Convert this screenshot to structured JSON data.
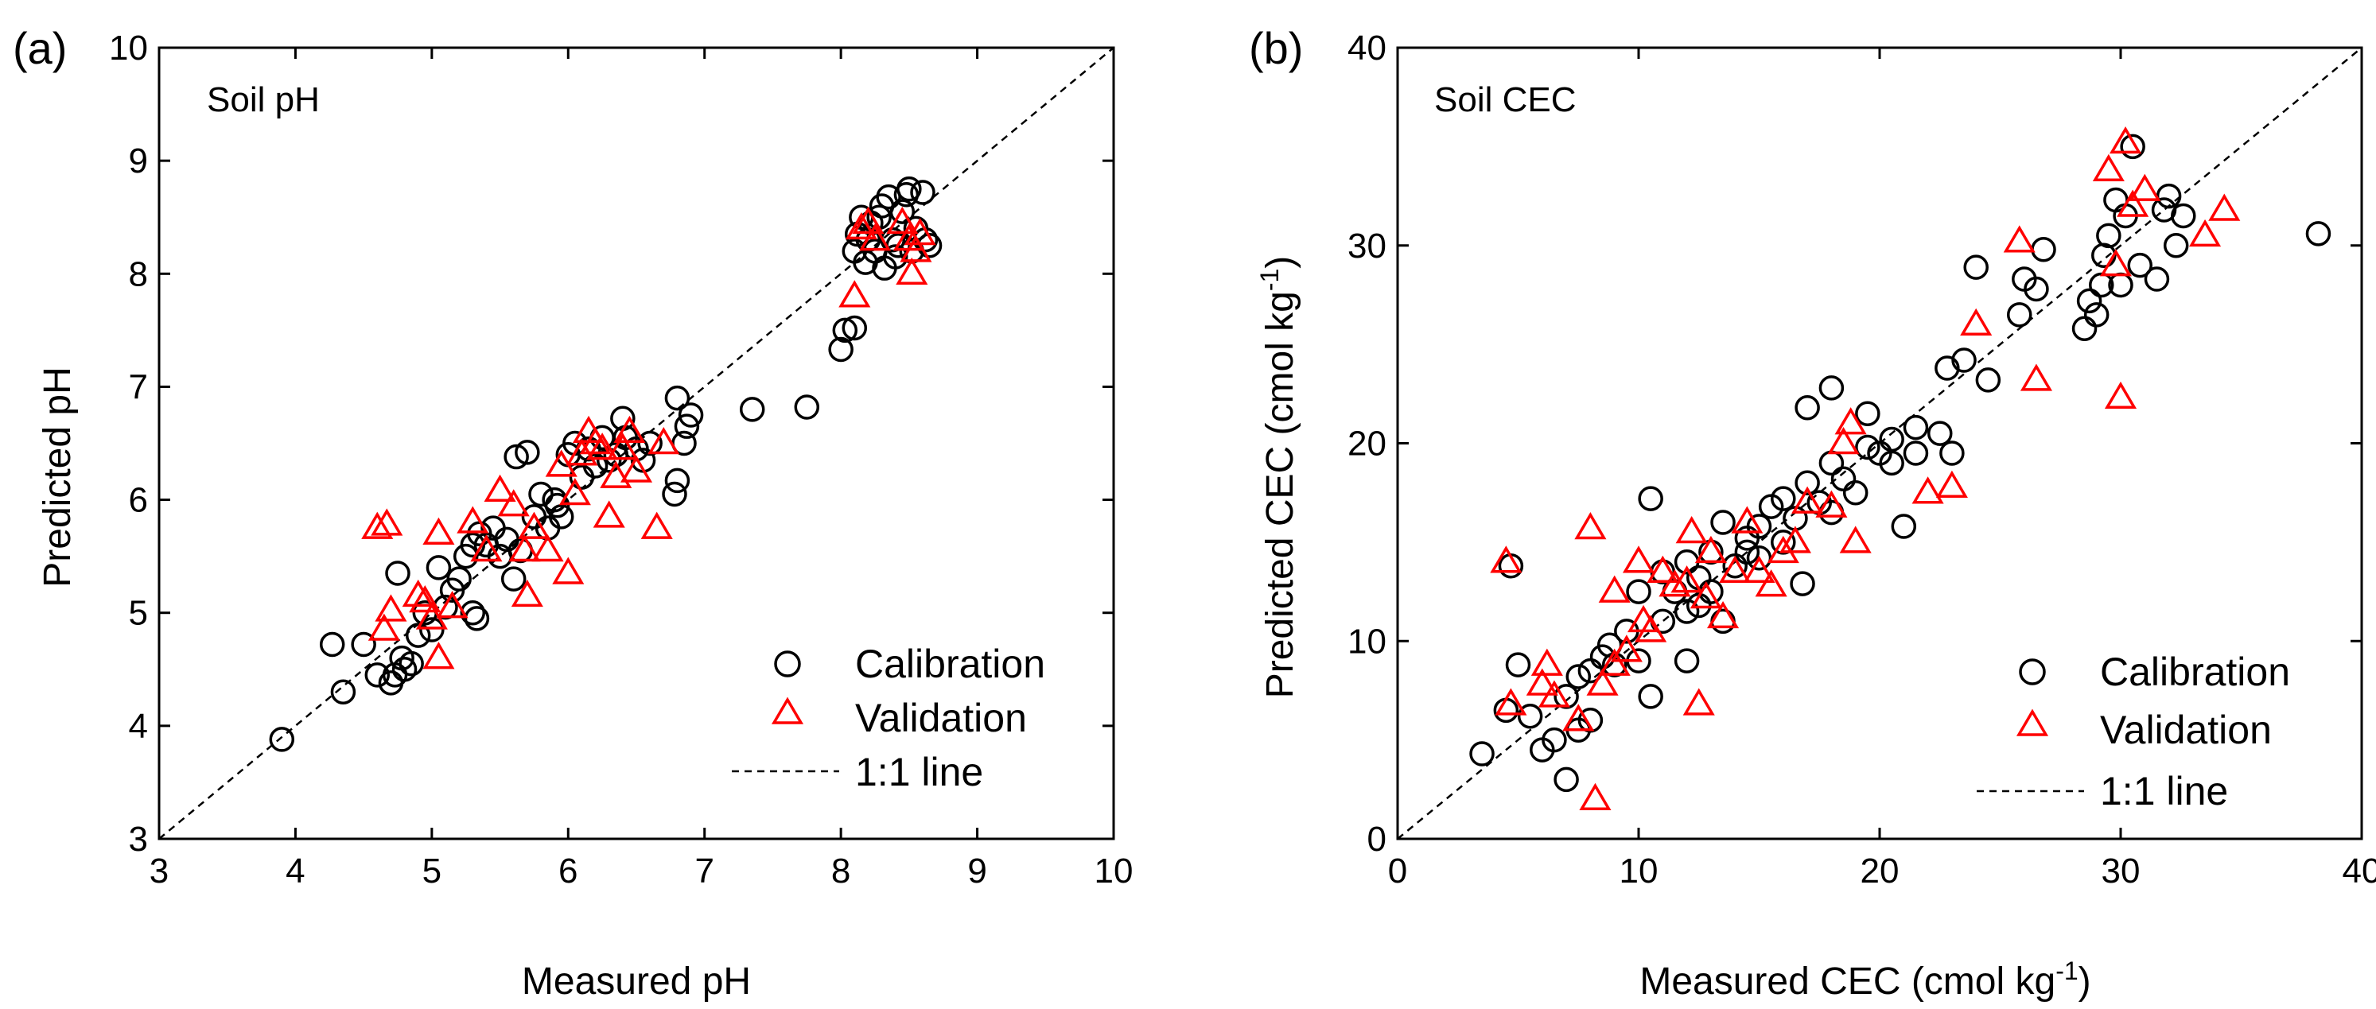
{
  "chart_data": [
    {
      "type": "scatter",
      "panel_label": "(a)",
      "title": "Soil pH",
      "xlabel": "Measured pH",
      "ylabel": "Predicted pH",
      "xlim": [
        3,
        10
      ],
      "ylim": [
        3,
        10
      ],
      "xticks": [
        3,
        4,
        5,
        6,
        7,
        8,
        9,
        10
      ],
      "yticks": [
        3,
        4,
        5,
        6,
        7,
        8,
        9,
        10
      ],
      "legend_position": "bottom-right",
      "legend": [
        {
          "name": "Calibration",
          "marker": "circle",
          "color": "#000000"
        },
        {
          "name": "Validation",
          "marker": "triangle",
          "color": "#ff0000"
        },
        {
          "name": "1:1 line",
          "marker": "dashed-line",
          "color": "#000000"
        }
      ],
      "series": [
        {
          "name": "Calibration",
          "points": [
            [
              3.9,
              3.88
            ],
            [
              4.27,
              4.72
            ],
            [
              4.35,
              4.3
            ],
            [
              4.5,
              4.72
            ],
            [
              4.6,
              4.45
            ],
            [
              4.7,
              4.38
            ],
            [
              4.73,
              4.45
            ],
            [
              4.75,
              5.35
            ],
            [
              4.78,
              4.6
            ],
            [
              4.8,
              4.5
            ],
            [
              4.85,
              4.55
            ],
            [
              4.9,
              4.8
            ],
            [
              4.95,
              5.0
            ],
            [
              5.0,
              4.85
            ],
            [
              5.05,
              5.4
            ],
            [
              5.1,
              5.05
            ],
            [
              5.15,
              5.2
            ],
            [
              5.2,
              5.3
            ],
            [
              5.25,
              5.5
            ],
            [
              5.3,
              5.0
            ],
            [
              5.3,
              5.6
            ],
            [
              5.33,
              4.95
            ],
            [
              5.35,
              5.7
            ],
            [
              5.4,
              5.6
            ],
            [
              5.45,
              5.75
            ],
            [
              5.5,
              5.5
            ],
            [
              5.55,
              5.65
            ],
            [
              5.6,
              5.3
            ],
            [
              5.62,
              6.38
            ],
            [
              5.65,
              5.55
            ],
            [
              5.7,
              6.42
            ],
            [
              5.75,
              5.85
            ],
            [
              5.8,
              6.05
            ],
            [
              5.85,
              5.75
            ],
            [
              5.9,
              6.0
            ],
            [
              5.92,
              5.95
            ],
            [
              5.95,
              5.85
            ],
            [
              6.0,
              6.4
            ],
            [
              6.05,
              6.5
            ],
            [
              6.1,
              6.2
            ],
            [
              6.15,
              6.45
            ],
            [
              6.2,
              6.3
            ],
            [
              6.25,
              6.55
            ],
            [
              6.3,
              6.35
            ],
            [
              6.35,
              6.4
            ],
            [
              6.4,
              6.72
            ],
            [
              6.42,
              6.55
            ],
            [
              6.5,
              6.45
            ],
            [
              6.55,
              6.35
            ],
            [
              6.6,
              6.5
            ],
            [
              6.78,
              6.05
            ],
            [
              6.8,
              6.17
            ],
            [
              6.8,
              6.9
            ],
            [
              6.85,
              6.5
            ],
            [
              6.87,
              6.65
            ],
            [
              6.9,
              6.75
            ],
            [
              7.35,
              6.8
            ],
            [
              7.75,
              6.82
            ],
            [
              8.0,
              7.33
            ],
            [
              8.03,
              7.5
            ],
            [
              8.1,
              7.52
            ],
            [
              8.1,
              8.2
            ],
            [
              8.12,
              8.35
            ],
            [
              8.15,
              8.5
            ],
            [
              8.18,
              8.1
            ],
            [
              8.2,
              8.3
            ],
            [
              8.22,
              8.45
            ],
            [
              8.25,
              8.2
            ],
            [
              8.28,
              8.5
            ],
            [
              8.3,
              8.6
            ],
            [
              8.32,
              8.05
            ],
            [
              8.35,
              8.68
            ],
            [
              8.38,
              8.3
            ],
            [
              8.4,
              8.15
            ],
            [
              8.42,
              8.25
            ],
            [
              8.45,
              8.55
            ],
            [
              8.48,
              8.7
            ],
            [
              8.5,
              8.75
            ],
            [
              8.52,
              8.2
            ],
            [
              8.55,
              8.4
            ],
            [
              8.6,
              8.72
            ],
            [
              8.62,
              8.3
            ],
            [
              8.65,
              8.25
            ]
          ]
        },
        {
          "name": "Validation",
          "points": [
            [
              4.6,
              5.75
            ],
            [
              4.67,
              5.78
            ],
            [
              4.65,
              4.85
            ],
            [
              4.7,
              5.02
            ],
            [
              4.9,
              5.15
            ],
            [
              4.95,
              5.1
            ],
            [
              5.0,
              4.95
            ],
            [
              5.05,
              5.7
            ],
            [
              5.05,
              4.6
            ],
            [
              5.15,
              5.05
            ],
            [
              5.3,
              5.8
            ],
            [
              5.4,
              5.55
            ],
            [
              5.5,
              6.08
            ],
            [
              5.6,
              5.95
            ],
            [
              5.68,
              5.55
            ],
            [
              5.7,
              5.15
            ],
            [
              5.75,
              5.75
            ],
            [
              5.85,
              5.55
            ],
            [
              5.95,
              6.3
            ],
            [
              6.0,
              5.35
            ],
            [
              6.05,
              6.05
            ],
            [
              6.1,
              6.4
            ],
            [
              6.15,
              6.6
            ],
            [
              6.2,
              6.5
            ],
            [
              6.25,
              6.45
            ],
            [
              6.3,
              5.85
            ],
            [
              6.35,
              6.2
            ],
            [
              6.4,
              6.45
            ],
            [
              6.45,
              6.6
            ],
            [
              6.5,
              6.25
            ],
            [
              6.65,
              5.75
            ],
            [
              6.7,
              6.5
            ],
            [
              8.1,
              7.8
            ],
            [
              8.15,
              8.4
            ],
            [
              8.2,
              8.45
            ],
            [
              8.25,
              8.3
            ],
            [
              8.45,
              8.45
            ],
            [
              8.5,
              8.3
            ],
            [
              8.52,
              8.0
            ],
            [
              8.55,
              8.2
            ],
            [
              8.58,
              8.35
            ]
          ]
        }
      ]
    },
    {
      "type": "scatter",
      "panel_label": "(b)",
      "title": "Soil CEC",
      "xlabel": "Measured CEC (cmol kg",
      "xlabel_sup": "-1",
      "xlabel_end": ")",
      "ylabel": "Predicted CEC (cmol kg",
      "ylabel_sup": "-1",
      "ylabel_end": ")",
      "xlim": [
        0,
        40
      ],
      "ylim": [
        0,
        40
      ],
      "xticks": [
        0,
        10,
        20,
        30,
        40
      ],
      "yticks": [
        0,
        10,
        20,
        30,
        40
      ],
      "legend_position": "bottom-right",
      "legend": [
        {
          "name": "Calibration",
          "marker": "circle",
          "color": "#000000"
        },
        {
          "name": "Validation",
          "marker": "triangle",
          "color": "#ff0000"
        },
        {
          "name": "1:1 line",
          "marker": "dashed-line",
          "color": "#000000"
        }
      ],
      "series": [
        {
          "name": "Calibration",
          "points": [
            [
              3.5,
              4.3
            ],
            [
              4.5,
              6.5
            ],
            [
              4.7,
              13.8
            ],
            [
              5.0,
              8.8
            ],
            [
              5.5,
              6.2
            ],
            [
              6.0,
              4.5
            ],
            [
              6.5,
              5.0
            ],
            [
              7.0,
              3.0
            ],
            [
              7.0,
              7.2
            ],
            [
              7.5,
              8.2
            ],
            [
              7.5,
              5.5
            ],
            [
              8.0,
              6.0
            ],
            [
              8.0,
              8.5
            ],
            [
              8.5,
              9.2
            ],
            [
              8.8,
              9.8
            ],
            [
              9.0,
              8.8
            ],
            [
              9.5,
              10.5
            ],
            [
              10.0,
              9.0
            ],
            [
              10.0,
              12.5
            ],
            [
              10.5,
              7.2
            ],
            [
              10.5,
              17.2
            ],
            [
              11.0,
              11.0
            ],
            [
              11.0,
              13.5
            ],
            [
              11.5,
              12.5
            ],
            [
              12.0,
              9.0
            ],
            [
              12.0,
              11.5
            ],
            [
              12.0,
              14.0
            ],
            [
              12.5,
              11.8
            ],
            [
              12.5,
              13.2
            ],
            [
              13.0,
              12.5
            ],
            [
              13.0,
              14.5
            ],
            [
              13.5,
              11.0
            ],
            [
              13.5,
              16.0
            ],
            [
              14.0,
              13.8
            ],
            [
              14.5,
              14.5
            ],
            [
              14.5,
              15.2
            ],
            [
              15.0,
              15.8
            ],
            [
              15.0,
              14.2
            ],
            [
              15.5,
              16.8
            ],
            [
              16.0,
              15.0
            ],
            [
              16.0,
              17.2
            ],
            [
              16.5,
              16.2
            ],
            [
              16.8,
              12.9
            ],
            [
              17.0,
              18.0
            ],
            [
              17.0,
              21.8
            ],
            [
              17.5,
              17.0
            ],
            [
              18.0,
              16.5
            ],
            [
              18.0,
              19.0
            ],
            [
              18.0,
              22.8
            ],
            [
              18.5,
              18.2
            ],
            [
              19.0,
              17.5
            ],
            [
              19.5,
              21.5
            ],
            [
              19.5,
              19.8
            ],
            [
              20.0,
              19.5
            ],
            [
              20.5,
              19.0
            ],
            [
              20.5,
              20.2
            ],
            [
              21.0,
              15.8
            ],
            [
              21.5,
              19.5
            ],
            [
              21.5,
              20.8
            ],
            [
              22.5,
              20.5
            ],
            [
              22.8,
              23.8
            ],
            [
              23.0,
              19.5
            ],
            [
              23.5,
              24.2
            ],
            [
              24.0,
              28.9
            ],
            [
              24.5,
              23.2
            ],
            [
              25.8,
              26.5
            ],
            [
              26.0,
              28.3
            ],
            [
              26.5,
              27.8
            ],
            [
              26.8,
              29.8
            ],
            [
              28.5,
              25.8
            ],
            [
              28.7,
              27.2
            ],
            [
              29.0,
              26.5
            ],
            [
              29.2,
              28.0
            ],
            [
              29.3,
              29.5
            ],
            [
              29.5,
              30.5
            ],
            [
              29.8,
              32.3
            ],
            [
              30.0,
              28.0
            ],
            [
              30.2,
              31.5
            ],
            [
              30.5,
              35.0
            ],
            [
              30.8,
              29.0
            ],
            [
              31.5,
              28.3
            ],
            [
              31.8,
              31.8
            ],
            [
              32.0,
              32.5
            ],
            [
              32.3,
              30.0
            ],
            [
              32.6,
              31.5
            ],
            [
              38.2,
              30.6
            ]
          ]
        },
        {
          "name": "Validation",
          "points": [
            [
              4.5,
              14.0
            ],
            [
              4.7,
              6.8
            ],
            [
              6.0,
              7.8
            ],
            [
              6.2,
              8.8
            ],
            [
              6.5,
              7.2
            ],
            [
              7.5,
              6.0
            ],
            [
              8.0,
              15.7
            ],
            [
              8.2,
              2.0
            ],
            [
              8.5,
              7.8
            ],
            [
              9.0,
              12.5
            ],
            [
              9.0,
              8.8
            ],
            [
              9.5,
              9.5
            ],
            [
              10.0,
              14.0
            ],
            [
              10.2,
              11.0
            ],
            [
              10.5,
              10.5
            ],
            [
              11.0,
              13.5
            ],
            [
              11.5,
              12.8
            ],
            [
              12.0,
              13.0
            ],
            [
              12.2,
              15.5
            ],
            [
              12.5,
              6.8
            ],
            [
              12.8,
              12.2
            ],
            [
              13.0,
              14.5
            ],
            [
              13.5,
              11.2
            ],
            [
              14.0,
              13.5
            ],
            [
              14.5,
              16.0
            ],
            [
              15.0,
              13.5
            ],
            [
              15.5,
              12.8
            ],
            [
              16.0,
              14.5
            ],
            [
              16.5,
              15.0
            ],
            [
              17.0,
              17.0
            ],
            [
              18.0,
              16.8
            ],
            [
              18.5,
              20.0
            ],
            [
              18.8,
              21.0
            ],
            [
              19.0,
              15.0
            ],
            [
              22.0,
              17.5
            ],
            [
              23.0,
              17.8
            ],
            [
              24.0,
              26.0
            ],
            [
              25.8,
              30.2
            ],
            [
              26.5,
              23.2
            ],
            [
              29.5,
              33.8
            ],
            [
              29.8,
              29.0
            ],
            [
              30.0,
              22.3
            ],
            [
              30.2,
              35.2
            ],
            [
              30.5,
              32.0
            ],
            [
              31.0,
              32.8
            ],
            [
              33.5,
              30.5
            ],
            [
              34.3,
              31.8
            ]
          ]
        }
      ]
    }
  ]
}
